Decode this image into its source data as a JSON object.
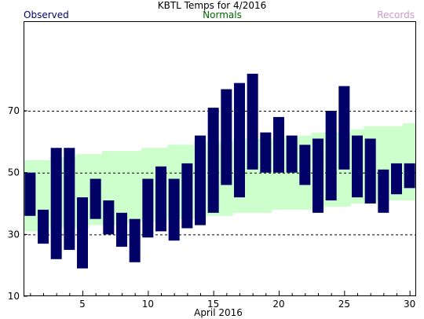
{
  "chart_data": {
    "type": "bar",
    "title": "KBTL Temps for 4/2016",
    "xlabel": "April 2016",
    "ylabel": "",
    "legend": {
      "observed": "Observed",
      "normals": "Normals",
      "records": "Records"
    },
    "colors": {
      "observed": "#000066",
      "normals_band": "#ccffcc",
      "observed_label": "#000066",
      "normals_label": "#006600",
      "records_label": "#cc99cc",
      "gridline": "#000000"
    },
    "xlim": [
      0.5,
      30.5
    ],
    "ylim": [
      10,
      99
    ],
    "y_ticks": [
      10,
      30,
      50,
      70
    ],
    "y_dashed_gridlines": [
      30,
      50,
      70
    ],
    "x_tick_labels": [
      5,
      10,
      15,
      20,
      25,
      30
    ],
    "days": [
      1,
      2,
      3,
      4,
      5,
      6,
      7,
      8,
      9,
      10,
      11,
      12,
      13,
      14,
      15,
      16,
      17,
      18,
      19,
      20,
      21,
      22,
      23,
      24,
      25,
      26,
      27,
      28,
      29,
      30
    ],
    "observed_high": [
      50,
      38,
      58,
      58,
      42,
      48,
      41,
      37,
      35,
      48,
      52,
      48,
      53,
      62,
      71,
      77,
      79,
      82,
      63,
      68,
      62,
      59,
      61,
      70,
      78,
      62,
      61,
      51,
      53,
      53
    ],
    "observed_low": [
      36,
      27,
      22,
      25,
      19,
      35,
      30,
      26,
      21,
      29,
      31,
      28,
      32,
      33,
      37,
      46,
      42,
      51,
      50,
      50,
      50,
      46,
      37,
      41,
      51,
      42,
      40,
      37,
      43,
      45
    ],
    "normal_high": [
      54,
      54,
      55,
      55,
      56,
      56,
      57,
      57,
      57,
      58,
      58,
      59,
      59,
      60,
      60,
      60,
      61,
      61,
      61,
      61,
      62,
      62,
      63,
      63,
      63,
      64,
      65,
      65,
      65,
      66
    ],
    "normal_low": [
      31,
      31,
      32,
      32,
      32,
      33,
      33,
      33,
      34,
      34,
      34,
      35,
      35,
      35,
      36,
      36,
      37,
      37,
      37,
      38,
      38,
      38,
      38,
      39,
      39,
      40,
      40,
      41,
      41,
      41
    ]
  }
}
